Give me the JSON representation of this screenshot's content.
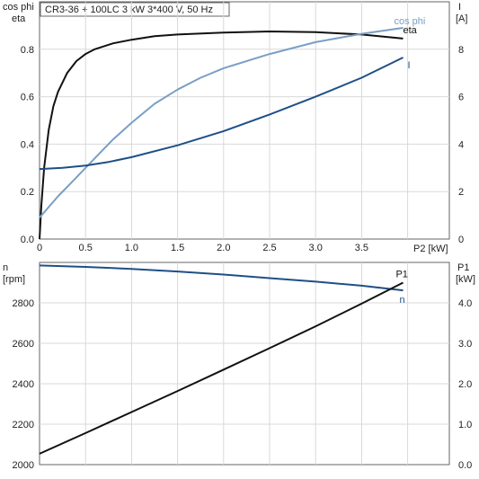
{
  "title": "CR3-36 + 100LC   3 kW   3*400 V, 50 Hz",
  "colors": {
    "eta": "#111111",
    "cosphi": "#7a9fc4",
    "current": "#1f4f86",
    "speed": "#1f4f86",
    "p1": "#111111",
    "grid": "#d9d9d9",
    "axis": "#666666"
  },
  "chart_data": [
    {
      "type": "line",
      "left_axis_label": [
        "cos phi",
        "eta"
      ],
      "right_axis_label": [
        "I",
        "[A]"
      ],
      "xlabel": "P2 [kW]",
      "xlim": [
        0,
        4.3
      ],
      "ylim_left": [
        0,
        1.0
      ],
      "ylim_right": [
        0,
        10
      ],
      "x_ticks": [
        "0",
        "0.5",
        "1.0",
        "1.5",
        "2.0",
        "2.5",
        "3.0",
        "3.5"
      ],
      "left_ticks": [
        "0.0",
        "0.2",
        "0.4",
        "0.6",
        "0.8"
      ],
      "right_ticks": [
        "0",
        "2",
        "4",
        "6",
        "8"
      ],
      "series": [
        {
          "name": "eta",
          "axis": "left",
          "x": [
            0,
            0.02,
            0.05,
            0.1,
            0.15,
            0.2,
            0.3,
            0.4,
            0.5,
            0.6,
            0.8,
            1.0,
            1.25,
            1.5,
            2.0,
            2.5,
            3.0,
            3.5,
            3.95
          ],
          "y": [
            0.0,
            0.14,
            0.3,
            0.46,
            0.56,
            0.62,
            0.7,
            0.75,
            0.78,
            0.8,
            0.825,
            0.84,
            0.855,
            0.862,
            0.87,
            0.875,
            0.872,
            0.862,
            0.845
          ]
        },
        {
          "name": "cos phi",
          "axis": "left",
          "x": [
            0,
            0.2,
            0.4,
            0.6,
            0.8,
            1.0,
            1.25,
            1.5,
            1.75,
            2.0,
            2.5,
            3.0,
            3.5,
            3.95
          ],
          "y": [
            0.09,
            0.18,
            0.26,
            0.34,
            0.42,
            0.49,
            0.57,
            0.63,
            0.68,
            0.72,
            0.78,
            0.83,
            0.865,
            0.89
          ]
        },
        {
          "name": "I",
          "axis": "right",
          "x": [
            0,
            0.25,
            0.5,
            0.75,
            1.0,
            1.5,
            2.0,
            2.5,
            3.0,
            3.5,
            3.95
          ],
          "y": [
            2.95,
            3.0,
            3.1,
            3.25,
            3.45,
            3.95,
            4.55,
            5.25,
            6.0,
            6.8,
            7.65
          ]
        }
      ]
    },
    {
      "type": "line",
      "left_axis_label": [
        "n",
        "[rpm]"
      ],
      "right_axis_label": [
        "P1",
        "[kW]"
      ],
      "xlim": [
        0,
        4.3
      ],
      "ylim_left": [
        2000,
        3000
      ],
      "ylim_right": [
        0,
        5.0
      ],
      "left_ticks": [
        "2000",
        "2200",
        "2400",
        "2600",
        "2800"
      ],
      "right_ticks": [
        "0.0",
        "1.0",
        "2.0",
        "3.0",
        "4.0"
      ],
      "series": [
        {
          "name": "n",
          "axis": "left",
          "x": [
            0,
            0.5,
            1.0,
            1.5,
            2.0,
            2.5,
            3.0,
            3.5,
            3.95
          ],
          "y": [
            2985,
            2978,
            2968,
            2955,
            2940,
            2922,
            2905,
            2885,
            2862
          ]
        },
        {
          "name": "P1",
          "axis": "right",
          "x": [
            0,
            0.5,
            1.0,
            1.5,
            2.0,
            2.5,
            3.0,
            3.5,
            3.95
          ],
          "y": [
            0.27,
            0.78,
            1.3,
            1.82,
            2.35,
            2.88,
            3.42,
            3.98,
            4.5
          ]
        }
      ]
    }
  ]
}
